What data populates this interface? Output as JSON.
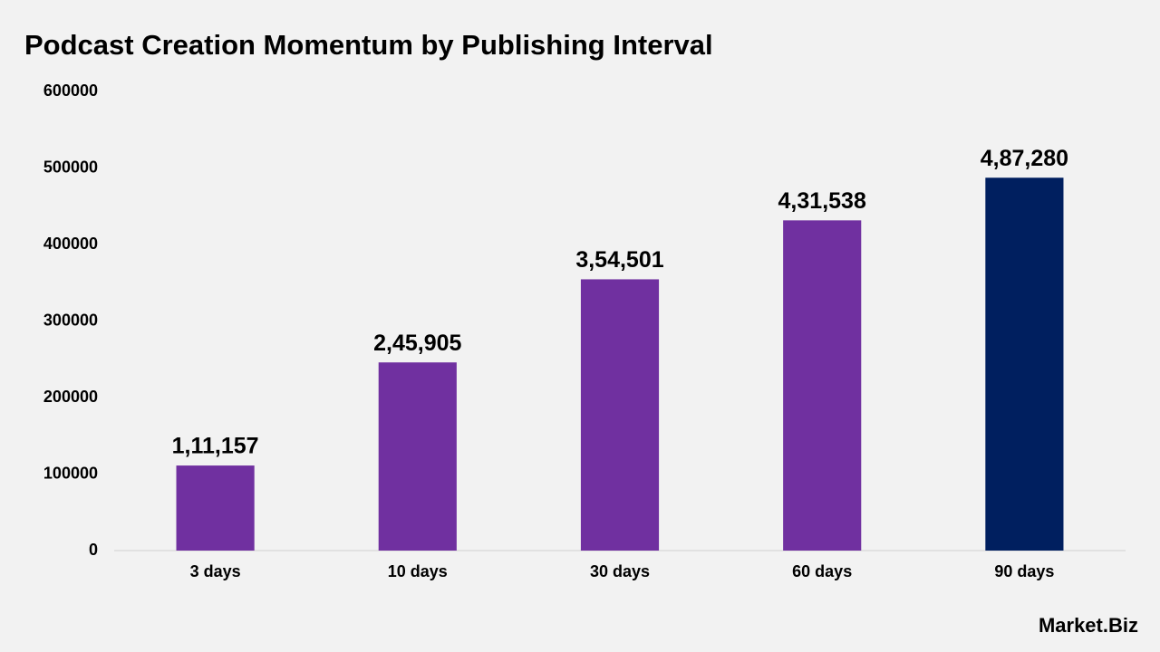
{
  "chart_data": {
    "type": "bar",
    "title": "Podcast Creation Momentum by Publishing Interval",
    "categories": [
      "3 days",
      "10 days",
      "30 days",
      "60 days",
      "90 days"
    ],
    "values": [
      111157,
      245905,
      354501,
      431538,
      487280
    ],
    "value_labels": [
      "1,11,157",
      "2,45,905",
      "3,54,501",
      "4,31,538",
      "4,87,280"
    ],
    "colors": [
      "#7030a0",
      "#7030a0",
      "#7030a0",
      "#7030a0",
      "#001f5f"
    ],
    "ylim": [
      0,
      600000
    ],
    "yticks": [
      0,
      100000,
      200000,
      300000,
      400000,
      500000,
      600000
    ],
    "grid": false
  },
  "logo": "Market.Biz"
}
